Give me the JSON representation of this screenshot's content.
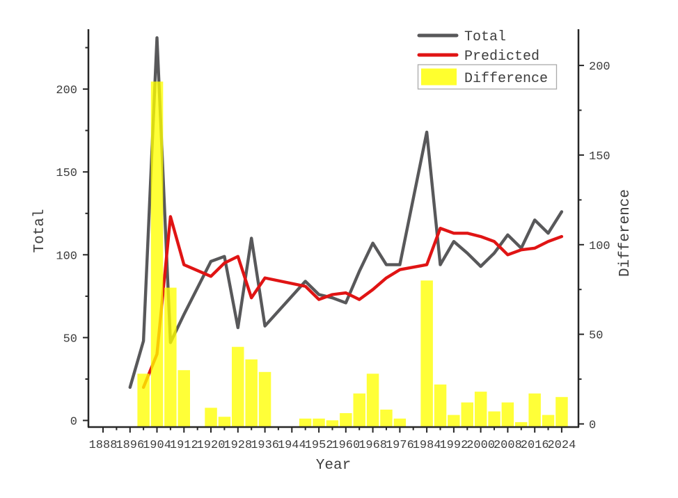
{
  "chart_data": {
    "type": "line+bar",
    "title": "",
    "xlabel": "Year",
    "ylabel_left": "Total",
    "ylabel_right": "Difference",
    "x_major_ticks": [
      1888,
      1896,
      1904,
      1912,
      1920,
      1928,
      1936,
      1944,
      1952,
      1960,
      1968,
      1976,
      1984,
      1992,
      2000,
      2008,
      2016,
      2024
    ],
    "x_minor_ticks": [
      1892,
      1900,
      1908,
      1916,
      1924,
      1932,
      1940,
      1948,
      1956,
      1964,
      1972,
      1980,
      1988,
      1996,
      2004,
      2012,
      2020
    ],
    "xlim": [
      1883.7,
      2029.2
    ],
    "left_major_ticks": [
      0,
      50,
      100,
      150,
      200
    ],
    "left_minor_ticks": [
      25,
      75,
      125,
      175,
      225
    ],
    "left_ylim": [
      -4,
      235
    ],
    "right_major_ticks": [
      0,
      50,
      100,
      150,
      200
    ],
    "right_minor_ticks": [
      25,
      75,
      125,
      175
    ],
    "right_ylim": [
      -2,
      219
    ],
    "grid": false,
    "legend_position": "upper right",
    "series": [
      {
        "name": "Total",
        "type": "line",
        "axis": "left",
        "color": "#58585a",
        "x": [
          1896,
          1900,
          1904,
          1908,
          1912,
          1920,
          1924,
          1928,
          1932,
          1936,
          1948,
          1952,
          1956,
          1960,
          1964,
          1968,
          1972,
          1976,
          1984,
          1988,
          1992,
          1996,
          2000,
          2004,
          2008,
          2012,
          2016,
          2020,
          2024
        ],
        "values": [
          20,
          48,
          231,
          47,
          64,
          96,
          99,
          56,
          110,
          57,
          84,
          76,
          74,
          71,
          90,
          107,
          94,
          94,
          174,
          94,
          108,
          101,
          93,
          101,
          112,
          104,
          121,
          113,
          126
        ]
      },
      {
        "name": "Predicted",
        "type": "line",
        "axis": "left",
        "color": "#e01414",
        "x": [
          1900,
          1904,
          1908,
          1912,
          1920,
          1924,
          1928,
          1932,
          1936,
          1948,
          1952,
          1956,
          1960,
          1964,
          1968,
          1972,
          1976,
          1984,
          1988,
          1992,
          1996,
          2000,
          2004,
          2008,
          2012,
          2016,
          2020,
          2024
        ],
        "values": [
          20,
          40,
          123,
          94,
          87,
          95,
          99,
          74,
          86,
          81,
          73,
          76,
          77,
          73,
          79,
          86,
          91,
          94,
          116,
          113,
          113,
          111,
          108,
          100,
          103,
          104,
          108,
          111
        ]
      },
      {
        "name": "Difference",
        "type": "bar",
        "axis": "right",
        "color": "#ffff00",
        "opacity": 0.78,
        "x": [
          1900,
          1904,
          1908,
          1912,
          1920,
          1924,
          1928,
          1932,
          1936,
          1948,
          1952,
          1956,
          1960,
          1964,
          1968,
          1972,
          1976,
          1984,
          1988,
          1992,
          1996,
          2000,
          2004,
          2008,
          2012,
          2016,
          2020,
          2024
        ],
        "values": [
          28,
          191,
          76,
          30,
          9,
          4,
          43,
          36,
          29,
          3,
          3,
          2,
          6,
          17,
          28,
          8,
          3,
          80,
          22,
          5,
          12,
          18,
          7,
          12,
          1,
          17,
          5,
          15
        ]
      }
    ],
    "legend": [
      {
        "label": "Total",
        "swatch": "line",
        "color": "#58585a",
        "framed": false
      },
      {
        "label": "Predicted",
        "swatch": "line",
        "color": "#e01414",
        "framed": false
      },
      {
        "label": "Difference",
        "swatch": "patch",
        "color": "#ffff2e",
        "framed": true
      }
    ]
  },
  "colors": {
    "background": "#ffffff",
    "axis": "#262626",
    "tick_text": "#3d3d3d",
    "label_text": "#3d3d3d",
    "legend_frame": "#aaaaaa",
    "total_line": "#58585a",
    "predicted_line": "#e01414",
    "difference_bar": "#ffff00"
  }
}
